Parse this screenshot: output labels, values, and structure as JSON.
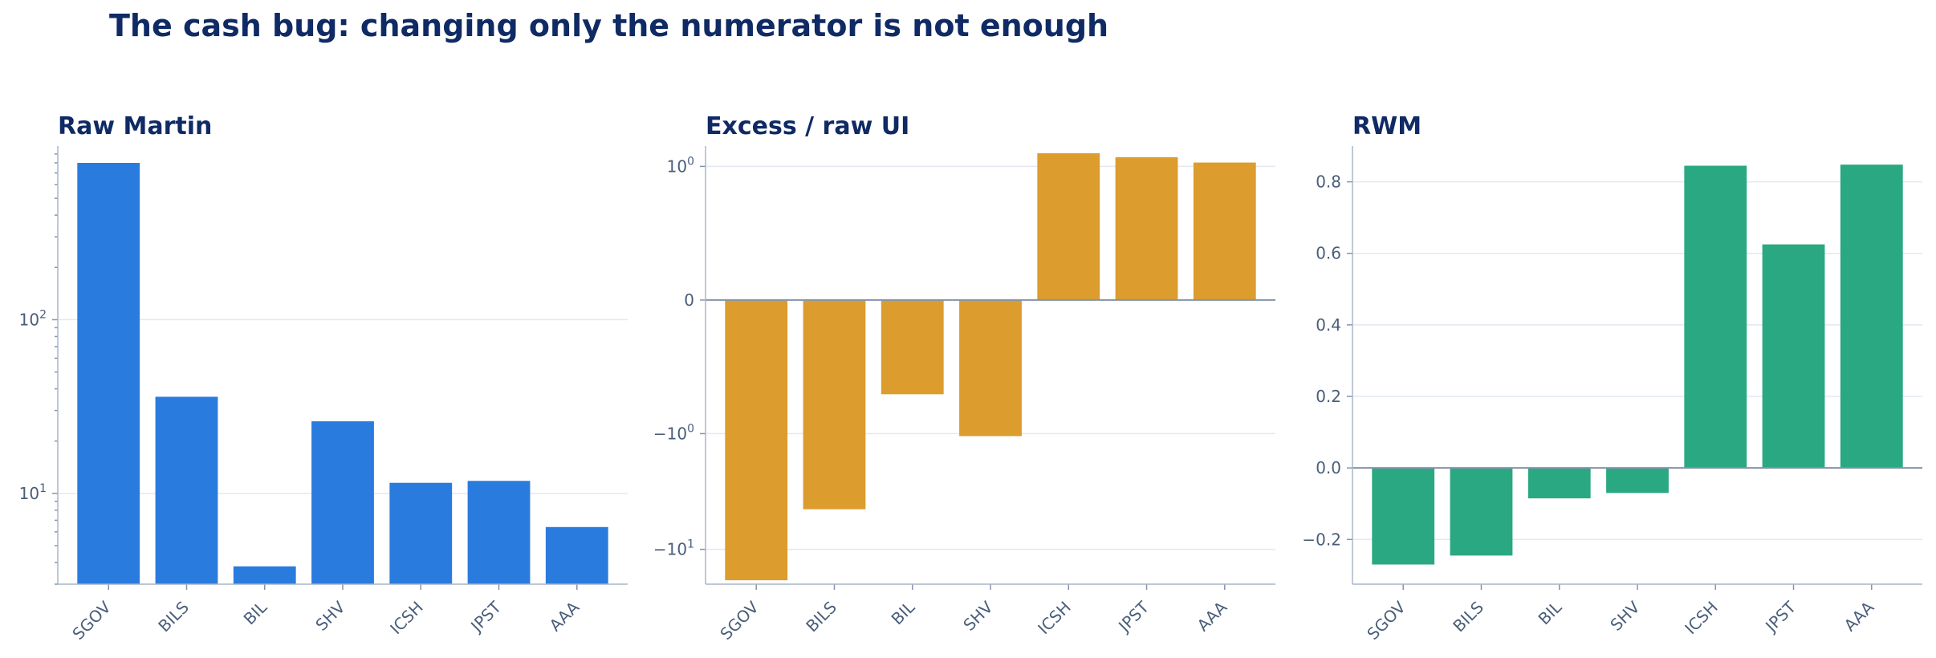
{
  "title": "The cash bug: changing only the numerator is not enough",
  "colors": {
    "panel1": "#2a7bde",
    "panel2": "#dc9c2e",
    "panel3": "#2aa881",
    "title": "#0f2a64",
    "tick": "#4a5e7a"
  },
  "chart_data": [
    {
      "type": "bar",
      "title": "Raw Martin",
      "yscale": "log",
      "categories": [
        "SGOV",
        "BILS",
        "BIL",
        "SHV",
        "ICSH",
        "JPST",
        "AAA"
      ],
      "values": [
        800,
        36,
        3.8,
        26,
        11.5,
        11.8,
        6.4
      ],
      "ylim": [
        3,
        1000
      ],
      "yticks": [
        {
          "v": 10,
          "base": "10",
          "exp": "1"
        },
        {
          "v": 100,
          "base": "10",
          "exp": "2"
        }
      ],
      "color": "#2a7bde",
      "grid": true
    },
    {
      "type": "bar",
      "title": "Excess / raw UI",
      "yscale": "symlog",
      "categories": [
        "SGOV",
        "BILS",
        "BIL",
        "SHV",
        "ICSH",
        "JPST",
        "AAA"
      ],
      "values": [
        -18.5,
        -4.5,
        -0.57,
        -1.05,
        1.3,
        1.2,
        1.08
      ],
      "ylim": [
        -20,
        1.5
      ],
      "yticks": [
        {
          "v": -10,
          "base": "−10",
          "exp": "1"
        },
        {
          "v": -1,
          "base": "−10",
          "exp": "0"
        },
        {
          "v": 0,
          "base": "0",
          "exp": ""
        },
        {
          "v": 1,
          "base": "10",
          "exp": "0"
        }
      ],
      "color": "#dc9c2e",
      "grid": true
    },
    {
      "type": "bar",
      "title": "RWM",
      "yscale": "linear",
      "categories": [
        "SGOV",
        "BILS",
        "BIL",
        "SHV",
        "ICSH",
        "JPST",
        "AAA"
      ],
      "values": [
        -0.27,
        -0.245,
        -0.085,
        -0.07,
        0.845,
        0.625,
        0.848
      ],
      "ylim": [
        -0.325,
        0.9
      ],
      "yticks": [
        {
          "v": -0.2,
          "base": "−0.2",
          "exp": ""
        },
        {
          "v": 0.0,
          "base": "0.0",
          "exp": ""
        },
        {
          "v": 0.2,
          "base": "0.2",
          "exp": ""
        },
        {
          "v": 0.4,
          "base": "0.4",
          "exp": ""
        },
        {
          "v": 0.6,
          "base": "0.6",
          "exp": ""
        },
        {
          "v": 0.8,
          "base": "0.8",
          "exp": ""
        }
      ],
      "color": "#2aa881",
      "grid": true
    }
  ]
}
